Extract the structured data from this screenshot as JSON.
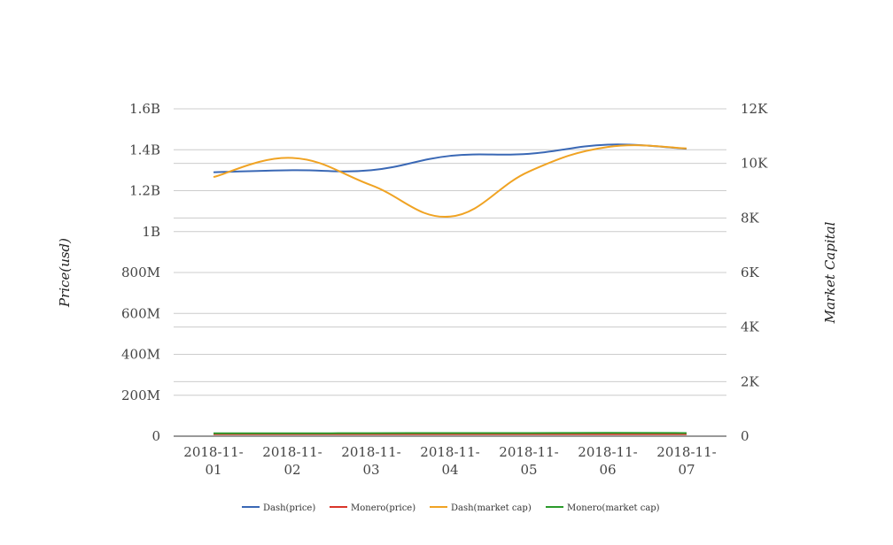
{
  "chart_data": {
    "type": "line",
    "categories": [
      "2018-11-01",
      "2018-11-02",
      "2018-11-03",
      "2018-11-04",
      "2018-11-05",
      "2018-11-06",
      "2018-11-07"
    ],
    "category_labels": [
      [
        "2018-11-",
        "01"
      ],
      [
        "2018-11-",
        "02"
      ],
      [
        "2018-11-",
        "03"
      ],
      [
        "2018-11-",
        "04"
      ],
      [
        "2018-11-",
        "05"
      ],
      [
        "2018-11-",
        "06"
      ],
      [
        "2018-11-",
        "07"
      ]
    ],
    "y_left": {
      "label": "Price(usd)",
      "range": [
        0,
        1600000000
      ],
      "ticks": [
        0,
        200000000,
        400000000,
        600000000,
        800000000,
        1000000000,
        1200000000,
        1400000000,
        1600000000
      ],
      "tick_labels": [
        "0",
        "200M",
        "400M",
        "600M",
        "800M",
        "1B",
        "1.2B",
        "1.4B",
        "1.6B"
      ]
    },
    "y_right": {
      "label": "Market Capital",
      "range": [
        0,
        12000
      ],
      "ticks": [
        0,
        2000,
        4000,
        6000,
        8000,
        10000,
        12000
      ],
      "tick_labels": [
        "0",
        "2K",
        "4K",
        "6K",
        "8K",
        "10K",
        "12K"
      ]
    },
    "grid": true,
    "legend_position": "bottom",
    "series": [
      {
        "name": "Dash(price)",
        "axis": "left",
        "color": "#3a68b5",
        "values": [
          1290000000,
          1300000000,
          1300000000,
          1370000000,
          1380000000,
          1425000000,
          1405000000
        ]
      },
      {
        "name": "Monero(price)",
        "axis": "left",
        "color": "#d9352a",
        "values": [
          10000000,
          10000000,
          10000000,
          10000000,
          10000000,
          10000000,
          10000000
        ]
      },
      {
        "name": "Dash(market cap)",
        "axis": "right",
        "color": "#f0a323",
        "values": [
          9500,
          10200,
          9200,
          8050,
          9700,
          10600,
          10550
        ]
      },
      {
        "name": "Monero(market cap)",
        "axis": "right",
        "color": "#2b9a2b",
        "values": [
          105,
          105,
          110,
          115,
          115,
          120,
          115
        ]
      }
    ]
  }
}
